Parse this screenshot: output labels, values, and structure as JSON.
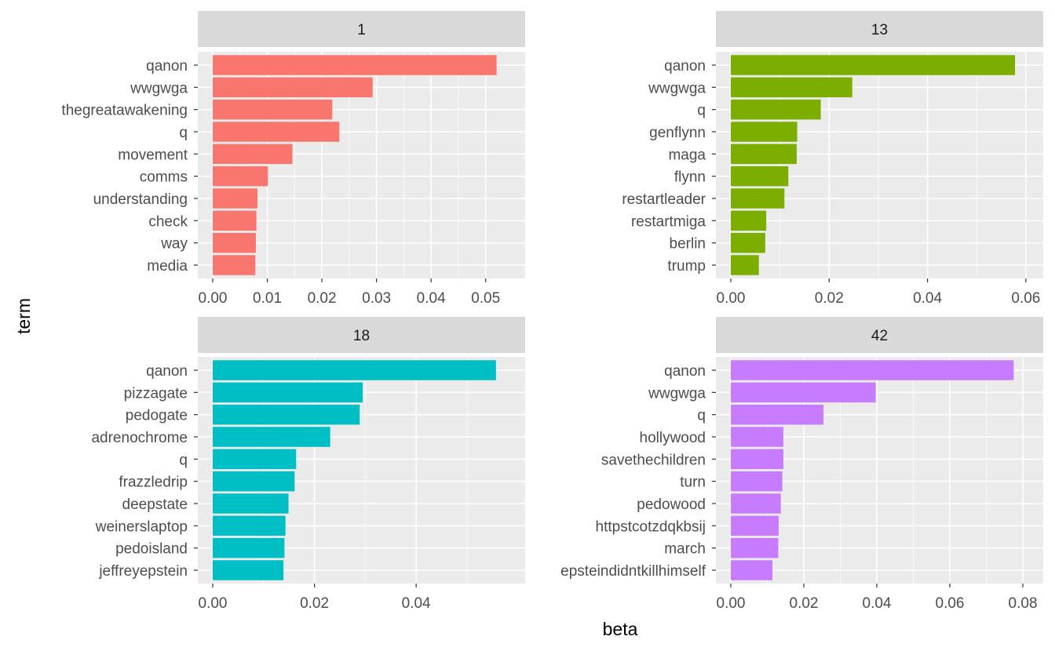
{
  "chart_data": {
    "type": "bar",
    "orientation": "horizontal",
    "xlabel": "beta",
    "ylabel": "term",
    "grid": true,
    "legend": "none",
    "facets": [
      {
        "label": "1",
        "color": "#F8766D",
        "xlim": [
          0,
          0.0545
        ],
        "xticks": [
          0.0,
          0.01,
          0.02,
          0.03,
          0.04,
          0.05
        ],
        "xtick_labels": [
          "0.00",
          "0.01",
          "0.02",
          "0.03",
          "0.04",
          "0.05"
        ],
        "terms": [
          "qanon",
          "wwgwga",
          "thegreatawakening",
          "q",
          "movement",
          "comms",
          "understanding",
          "check",
          "way",
          "media"
        ],
        "values": [
          0.052,
          0.0293,
          0.0219,
          0.0232,
          0.0146,
          0.0101,
          0.0082,
          0.008,
          0.0079,
          0.0078
        ]
      },
      {
        "label": "13",
        "color": "#7CAE00",
        "xlim": [
          0,
          0.0605
        ],
        "xticks": [
          0.0,
          0.02,
          0.04,
          0.06
        ],
        "xtick_labels": [
          "0.00",
          "0.02",
          "0.04",
          "0.06"
        ],
        "terms": [
          "qanon",
          "wwgwga",
          "q",
          "genflynn",
          "maga",
          "flynn",
          "restartleader",
          "restartmiga",
          "berlin",
          "trump"
        ],
        "values": [
          0.0578,
          0.0247,
          0.0183,
          0.0135,
          0.0134,
          0.0117,
          0.0109,
          0.0072,
          0.007,
          0.0057
        ]
      },
      {
        "label": "18",
        "color": "#00BFC4",
        "xlim": [
          0,
          0.0585
        ],
        "xticks": [
          0.0,
          0.02,
          0.04
        ],
        "xtick_labels": [
          "0.00",
          "0.02",
          "0.04"
        ],
        "terms": [
          "qanon",
          "pizzagate",
          "pedogate",
          "adrenochrome",
          "q",
          "frazzledrip",
          "deepstate",
          "weinerslaptop",
          "pedoisland",
          "jeffreyepstein"
        ],
        "values": [
          0.0557,
          0.0295,
          0.0289,
          0.0231,
          0.0164,
          0.0161,
          0.0149,
          0.0143,
          0.0141,
          0.0139
        ]
      },
      {
        "label": "42",
        "color": "#C77CFF",
        "xlim": [
          0,
          0.0815
        ],
        "xticks": [
          0.0,
          0.02,
          0.04,
          0.06,
          0.08
        ],
        "xtick_labels": [
          "0.00",
          "0.02",
          "0.04",
          "0.06",
          "0.08"
        ],
        "terms": [
          "qanon",
          "wwgwga",
          "q",
          "hollywood",
          "savethechildren",
          "turn",
          "pedowood",
          "httpstcotzdqkbsij",
          "march",
          "epsteindidntkillhimself"
        ],
        "values": [
          0.0775,
          0.0397,
          0.0254,
          0.0144,
          0.0144,
          0.0141,
          0.0137,
          0.0131,
          0.013,
          0.0114
        ]
      }
    ]
  }
}
